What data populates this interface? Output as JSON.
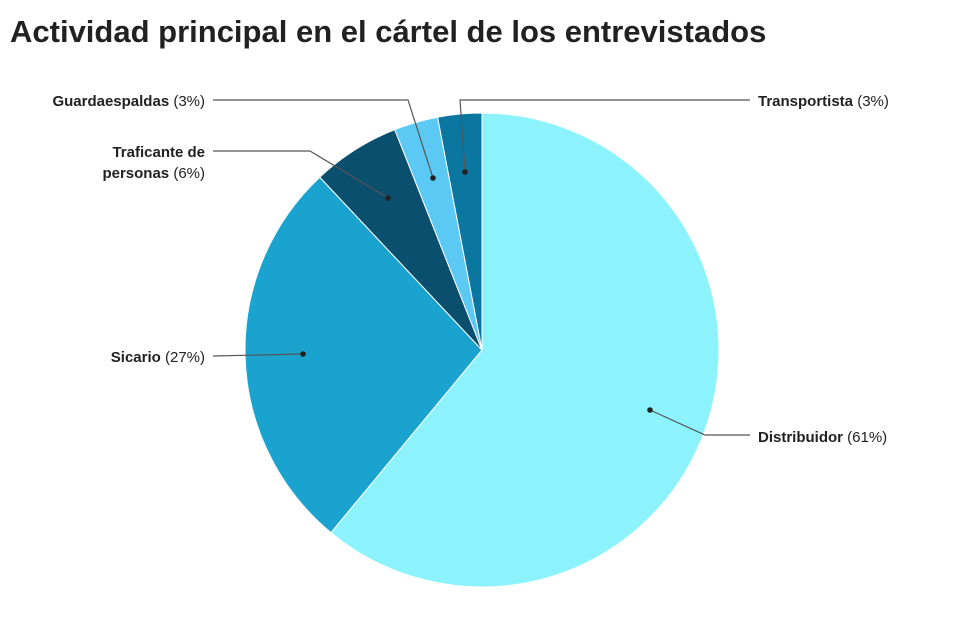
{
  "chart_data": {
    "type": "pie",
    "title": "Actividad principal en el cártel de los entrevistados",
    "start": "top",
    "direction": "clockwise",
    "slices": [
      {
        "label": "Distribuidor",
        "value": 61,
        "pct_label": "(61%)",
        "color": "#8cf3fd"
      },
      {
        "label": "Sicario",
        "value": 27,
        "pct_label": "(27%)",
        "color": "#1ba3cf"
      },
      {
        "label": "Traficante de personas",
        "lines": [
          "Traficante de",
          "personas"
        ],
        "value": 6,
        "pct_label": "(6%)",
        "color": "#0a4f6d"
      },
      {
        "label": "Guardaespaldas",
        "value": 3,
        "pct_label": "(3%)",
        "color": "#5cc9f4"
      },
      {
        "label": "Transportista",
        "value": 3,
        "pct_label": "(3%)",
        "color": "#0b77a0"
      }
    ]
  }
}
